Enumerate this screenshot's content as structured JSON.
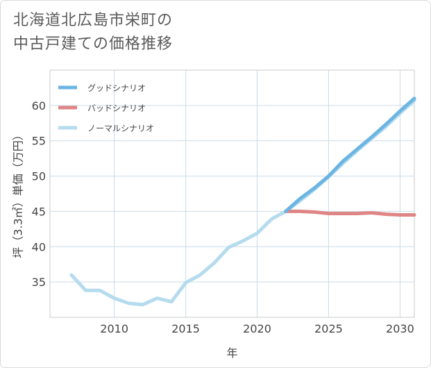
{
  "header": {
    "title_line1": "北海道北広島市栄町の",
    "title_line2": "中古戸建ての価格推移"
  },
  "chart_data": {
    "type": "line",
    "title": "北海道北広島市栄町の中古戸建ての価格推移",
    "xlabel": "年",
    "ylabel": "坪（3.3㎡）単価（万円）",
    "xlim": [
      2005.5,
      2031
    ],
    "ylim": [
      30,
      65
    ],
    "xticks": [
      2010,
      2015,
      2020,
      2025,
      2030
    ],
    "yticks": [
      35,
      40,
      45,
      50,
      55,
      60
    ],
    "grid": true,
    "legend_position": "top-left",
    "series": [
      {
        "name": "グッドシナリオ",
        "color": "#6cb5e3",
        "x": [
          2022,
          2023,
          2024,
          2025,
          2026,
          2027,
          2028,
          2029,
          2030,
          2031
        ],
        "y": [
          45.0,
          46.8,
          48.3,
          50.0,
          52.1,
          53.8,
          55.5,
          57.3,
          59.2,
          61.0
        ]
      },
      {
        "name": "バッドシナリオ",
        "color": "#e08585",
        "x": [
          2022,
          2023,
          2024,
          2025,
          2026,
          2027,
          2028,
          2029,
          2030,
          2031
        ],
        "y": [
          45.0,
          45.0,
          44.9,
          44.7,
          44.7,
          44.7,
          44.8,
          44.6,
          44.5,
          44.5
        ]
      },
      {
        "name": "ノーマルシナリオ",
        "color": "#b5dbee",
        "x": [
          2007,
          2008,
          2009,
          2010,
          2011,
          2012,
          2013,
          2014,
          2015,
          2016,
          2017,
          2018,
          2019,
          2020,
          2021,
          2022,
          2023,
          2024,
          2025,
          2026,
          2027,
          2028,
          2029,
          2030,
          2031
        ],
        "y": [
          36.0,
          33.8,
          33.8,
          32.7,
          32.0,
          31.8,
          32.7,
          32.2,
          34.9,
          36.0,
          37.7,
          39.9,
          40.8,
          41.9,
          43.9,
          45.0,
          46.5,
          48.1,
          49.9,
          51.8,
          53.6,
          55.3,
          57.0,
          58.9,
          60.7
        ]
      }
    ]
  }
}
